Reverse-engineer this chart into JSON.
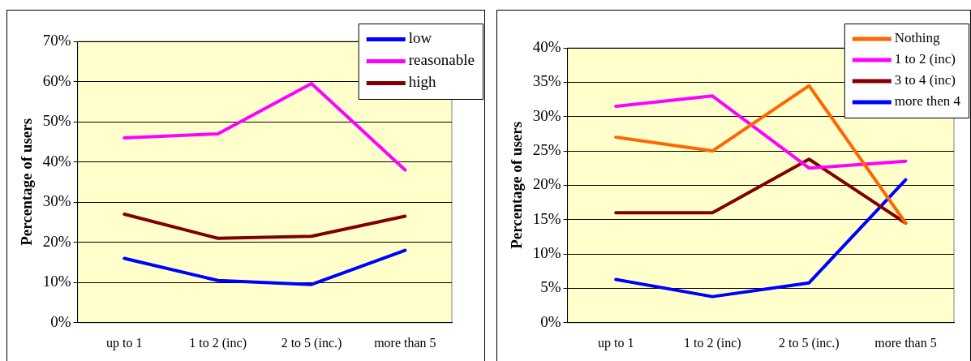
{
  "chart_data": [
    {
      "type": "line",
      "ylabel": "Percentage of users",
      "categories": [
        "up to 1",
        "1 to 2 (inc)",
        "2 to 5 (inc.)",
        "more than 5"
      ],
      "series": [
        {
          "name": "low",
          "color": "#0000ff",
          "values": [
            16,
            10.5,
            9.5,
            18
          ]
        },
        {
          "name": "reasonable",
          "color": "#ff00ff",
          "values": [
            46,
            47,
            59.5,
            38
          ]
        },
        {
          "name": "high",
          "color": "#800000",
          "values": [
            27,
            21,
            21.5,
            26.5
          ]
        }
      ],
      "ylim": [
        0,
        70
      ],
      "yticks": [
        {
          "value": 0,
          "label": "0%"
        },
        {
          "value": 10,
          "label": "10%"
        },
        {
          "value": 20,
          "label": "20%"
        },
        {
          "value": 30,
          "label": "30%"
        },
        {
          "value": 40,
          "label": "40%"
        },
        {
          "value": 50,
          "label": "50%"
        },
        {
          "value": 60,
          "label": "60%"
        },
        {
          "value": 70,
          "label": "70%"
        }
      ],
      "grid": "y",
      "legend": "top right",
      "marker": "none",
      "line_style": "solid"
    },
    {
      "type": "line",
      "ylabel": "Percentage of users",
      "categories": [
        "up to 1",
        "1 to 2 (inc)",
        "2 to 5 (inc.)",
        "more than 5"
      ],
      "series": [
        {
          "name": "Nothing",
          "color": "#ff6600",
          "values": [
            27,
            25,
            34.5,
            14.5
          ]
        },
        {
          "name": "1 to 2 (inc)",
          "color": "#ff00ff",
          "values": [
            31.5,
            33,
            22.5,
            23.5
          ]
        },
        {
          "name": "3 to 4 (inc)",
          "color": "#800000",
          "values": [
            16,
            16,
            23.8,
            14.5
          ]
        },
        {
          "name": "more then 4",
          "color": "#0000ff",
          "values": [
            6.3,
            3.8,
            5.8,
            20.8
          ]
        }
      ],
      "ylim": [
        0,
        40
      ],
      "yticks": [
        {
          "value": 0,
          "label": "0%"
        },
        {
          "value": 5,
          "label": "5%"
        },
        {
          "value": 10,
          "label": "10%"
        },
        {
          "value": 15,
          "label": "15%"
        },
        {
          "value": 20,
          "label": "20%"
        },
        {
          "value": 25,
          "label": "25%"
        },
        {
          "value": 30,
          "label": "30%"
        },
        {
          "value": 35,
          "label": "35%"
        },
        {
          "value": 40,
          "label": "40%"
        }
      ],
      "grid": "y",
      "legend": "top right",
      "marker": "none",
      "line_style": "solid"
    }
  ]
}
